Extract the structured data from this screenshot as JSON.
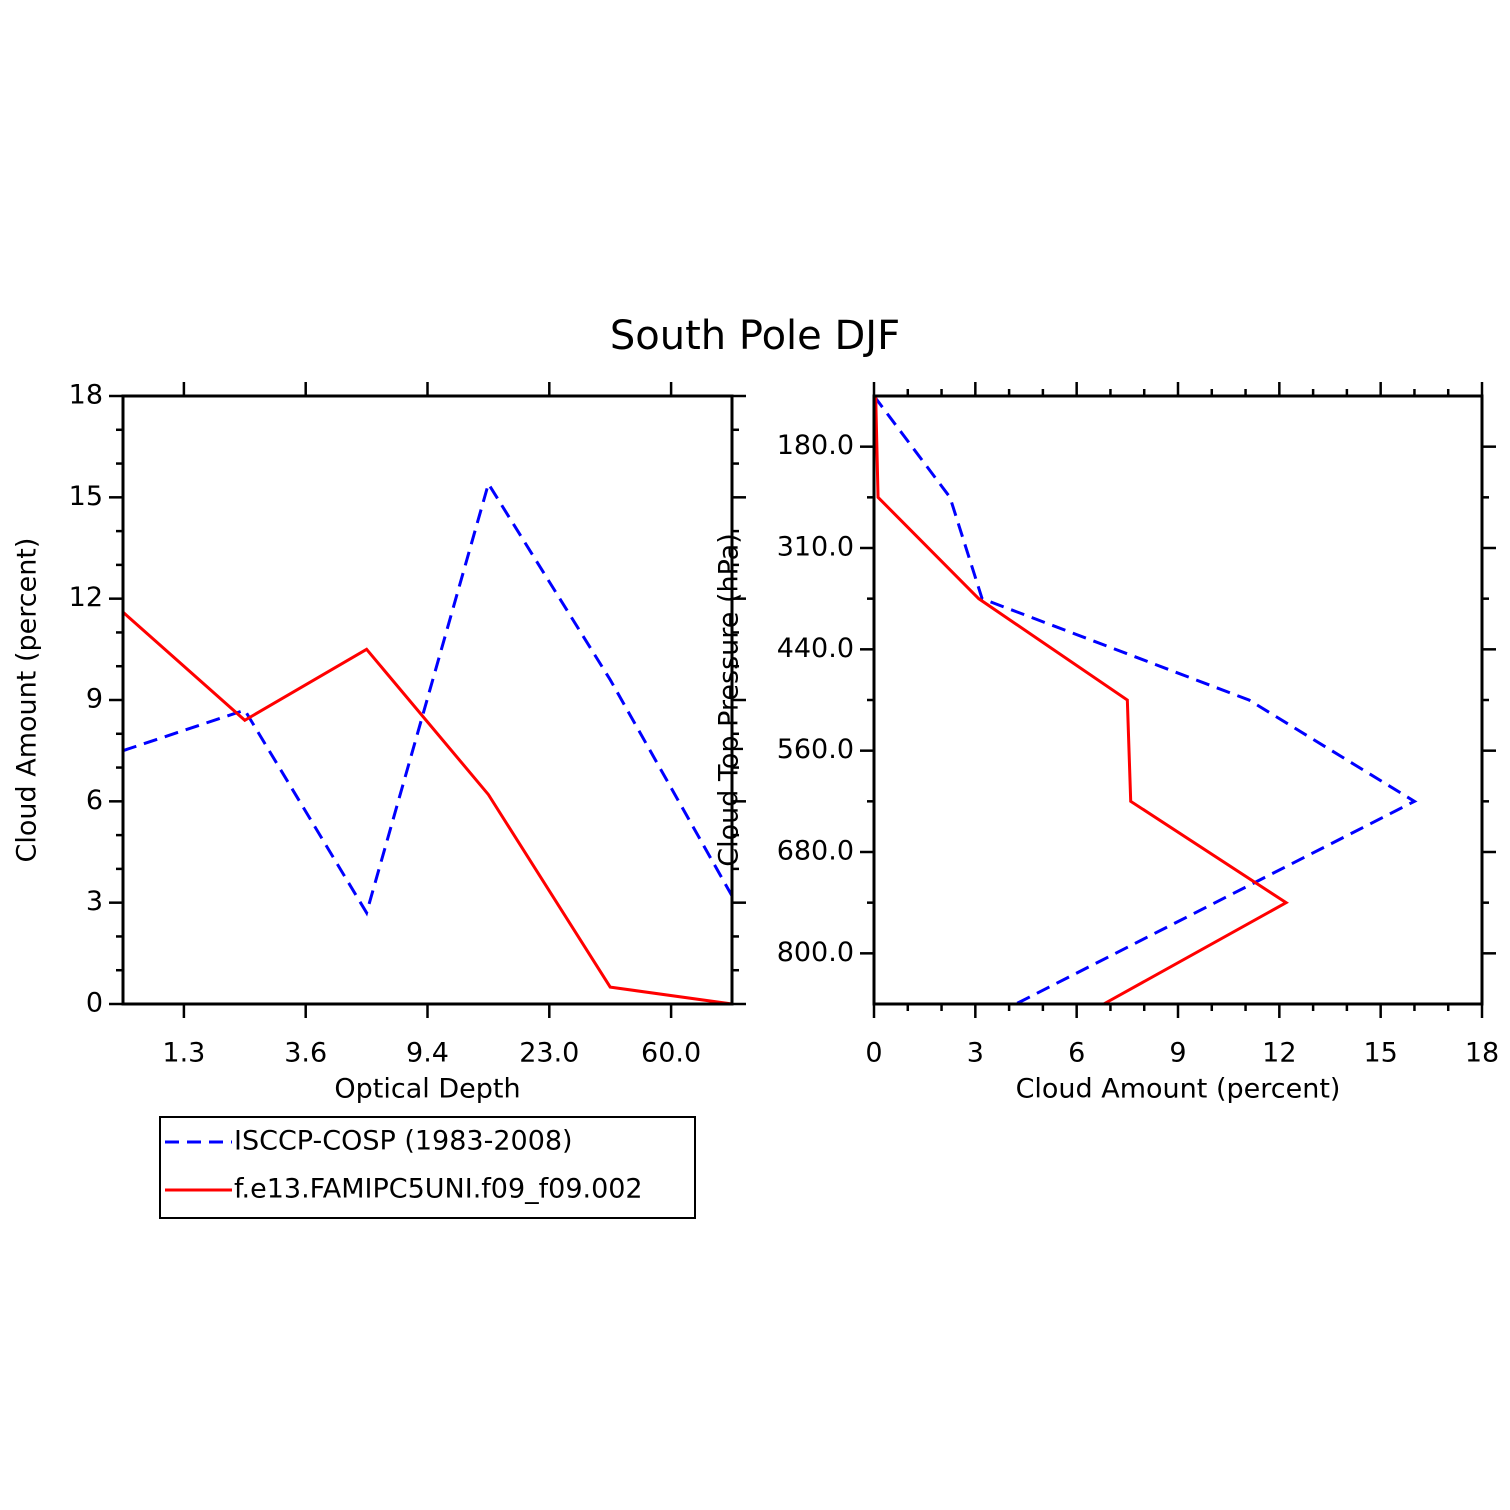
{
  "title": "South Pole DJF",
  "chart_data": [
    {
      "type": "line",
      "x_label": "Optical Depth",
      "y_label": "Cloud Amount (percent)",
      "x": [
        0,
        1,
        2,
        3,
        4,
        5
      ],
      "xlim": [
        0,
        5
      ],
      "xticks": [
        {
          "value": 0.5,
          "label": "1.3"
        },
        {
          "value": 1.5,
          "label": "3.6"
        },
        {
          "value": 2.5,
          "label": "9.4"
        },
        {
          "value": 3.5,
          "label": "23.0"
        },
        {
          "value": 4.5,
          "label": "60.0"
        }
      ],
      "ylim": [
        0,
        18
      ],
      "yticks": [
        0,
        3,
        6,
        9,
        12,
        15,
        18
      ],
      "legend": "below",
      "series": [
        {
          "name": "ISCCP-COSP (1983-2008)",
          "color": "#0000ff",
          "linestyle": "dashed",
          "values": [
            7.5,
            8.7,
            2.7,
            15.4,
            9.6,
            3.2
          ]
        },
        {
          "name": "f.e13.FAMIPC5UNI.f09_f09.002",
          "color": "#ff0000",
          "linestyle": "solid",
          "values": [
            11.6,
            8.4,
            10.5,
            6.2,
            0.5,
            0
          ]
        }
      ]
    },
    {
      "type": "line",
      "orientation": "horizontal",
      "x_label": "Cloud Amount (percent)",
      "y_label": "Cloud Top Pressure (hPa)",
      "y": [
        0,
        1,
        2,
        3,
        4,
        5,
        6
      ],
      "ylim": [
        6,
        0
      ],
      "yticks": [
        {
          "value": 0.5,
          "label": "180.0"
        },
        {
          "value": 1.5,
          "label": "310.0"
        },
        {
          "value": 2.5,
          "label": "440.0"
        },
        {
          "value": 3.5,
          "label": "560.0"
        },
        {
          "value": 4.5,
          "label": "680.0"
        },
        {
          "value": 5.5,
          "label": "800.0"
        }
      ],
      "xlim": [
        0,
        18
      ],
      "xticks": [
        0,
        3,
        6,
        9,
        12,
        15,
        18
      ],
      "series": [
        {
          "color": "#0000ff",
          "linestyle": "dashed",
          "values": [
            0,
            2.25,
            3.2,
            11.1,
            16.0,
            10.1,
            4.2
          ]
        },
        {
          "color": "#ff0000",
          "linestyle": "solid",
          "values": [
            0.05,
            0.12,
            3.1,
            7.5,
            7.6,
            12.2,
            6.8
          ]
        }
      ]
    }
  ]
}
